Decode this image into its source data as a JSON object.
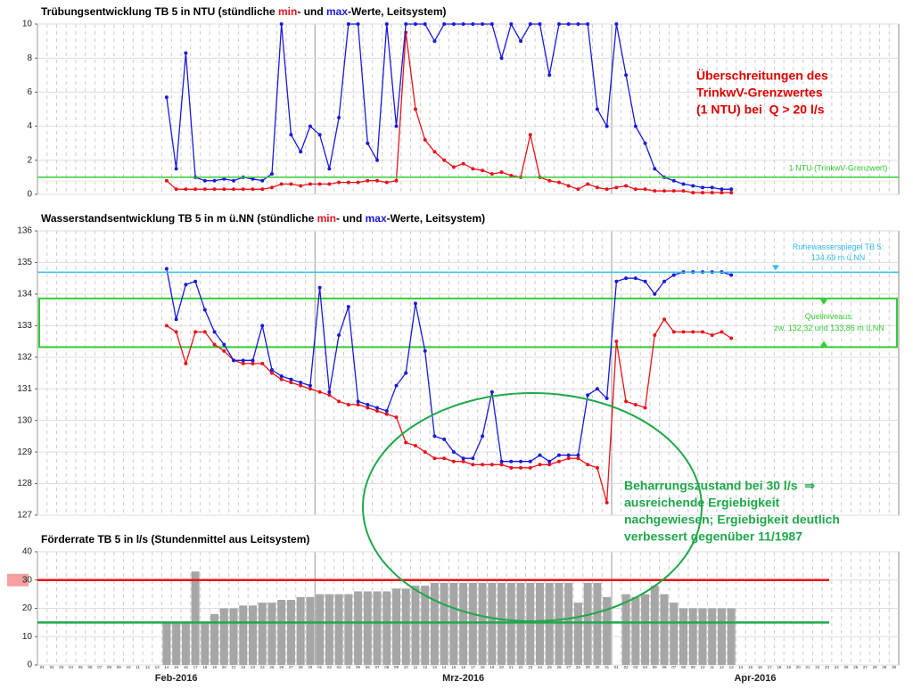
{
  "chart_data": [
    {
      "type": "line",
      "title": [
        "Trübungsentwicklung TB 5 in NTU (stündliche ",
        "- und ",
        "-Werte, Leitsystem)"
      ],
      "ylim": [
        0,
        10
      ],
      "yticks": [
        0,
        2,
        4,
        6,
        8,
        10
      ],
      "series": [
        {
          "name": "min",
          "color": "#e8131b",
          "values": [
            null,
            null,
            null,
            null,
            null,
            null,
            null,
            null,
            null,
            null,
            null,
            null,
            null,
            0.8,
            0.3,
            0.3,
            0.3,
            0.3,
            0.3,
            0.3,
            0.3,
            0.3,
            0.3,
            0.3,
            0.4,
            0.6,
            0.6,
            0.5,
            0.6,
            0.6,
            0.6,
            0.7,
            0.7,
            0.7,
            0.8,
            0.8,
            0.7,
            0.8,
            9.5,
            5.0,
            3.2,
            2.5,
            2.0,
            1.6,
            1.8,
            1.5,
            1.4,
            1.2,
            1.3,
            1.1,
            1.0,
            3.5,
            1.0,
            0.8,
            0.7,
            0.5,
            0.3,
            0.6,
            0.4,
            0.3,
            0.4,
            0.5,
            0.3,
            0.3,
            0.2,
            0.2,
            0.2,
            0.2,
            0.1,
            0.1,
            0.1,
            0.1,
            0.1,
            null,
            null,
            null,
            null,
            null,
            null,
            null,
            null,
            null,
            null,
            null,
            null,
            null,
            null,
            null,
            null,
            null
          ]
        },
        {
          "name": "max",
          "color": "#1a1adb",
          "values": [
            null,
            null,
            null,
            null,
            null,
            null,
            null,
            null,
            null,
            null,
            null,
            null,
            null,
            5.7,
            1.5,
            8.3,
            1.0,
            0.8,
            0.8,
            0.9,
            0.8,
            1.0,
            0.9,
            0.8,
            1.2,
            10,
            3.5,
            2.5,
            4.0,
            3.5,
            1.5,
            4.5,
            10,
            10,
            3.0,
            2.0,
            10,
            4.0,
            10,
            10,
            10,
            9,
            10,
            10,
            10,
            10,
            10,
            10,
            8,
            10,
            9,
            10,
            10,
            7,
            10,
            10,
            10,
            10,
            5,
            4,
            10,
            7,
            4,
            3,
            1.5,
            1.0,
            0.8,
            0.6,
            0.5,
            0.4,
            0.4,
            0.3,
            0.3,
            null,
            null,
            null,
            null,
            null,
            null,
            null,
            null,
            null,
            null,
            null,
            null,
            null,
            null,
            null,
            null,
            null
          ]
        }
      ],
      "reference_lines": [
        {
          "value": 1,
          "color": "#33cc33",
          "label": [
            "1 NTU (TrinkwV-Grenzwert)"
          ]
        }
      ],
      "annotation": {
        "color": "#e00000",
        "lines": [
          "Überschreitungen des",
          "TrinkwV-Grenzwertes",
          "(1 NTU) bei  Q > 20 l/s"
        ]
      }
    },
    {
      "type": "line",
      "title": [
        "Wasserstandsentwicklung TB 5 in m ü.NN (stündliche ",
        "- und ",
        "-Werte, Leitsystem)"
      ],
      "ylim": [
        127,
        136
      ],
      "yticks": [
        127,
        128,
        129,
        130,
        131,
        132,
        133,
        134,
        135,
        136
      ],
      "series": [
        {
          "name": "min",
          "color": "#e8131b",
          "values": [
            null,
            null,
            null,
            null,
            null,
            null,
            null,
            null,
            null,
            null,
            null,
            null,
            null,
            133.0,
            132.8,
            131.8,
            132.8,
            132.8,
            132.4,
            132.2,
            131.9,
            131.8,
            131.8,
            131.8,
            131.5,
            131.3,
            131.2,
            131.1,
            131.0,
            130.9,
            130.8,
            130.6,
            130.5,
            130.5,
            130.4,
            130.3,
            130.2,
            130.1,
            129.3,
            129.2,
            129.0,
            128.8,
            128.8,
            128.7,
            128.7,
            128.6,
            128.6,
            128.6,
            128.6,
            128.5,
            128.5,
            128.5,
            128.6,
            128.6,
            128.7,
            128.8,
            128.8,
            128.6,
            128.5,
            127.4,
            132.5,
            130.6,
            130.5,
            130.4,
            132.7,
            133.2,
            132.8,
            132.8,
            132.8,
            132.8,
            132.7,
            132.8,
            132.6,
            null,
            null,
            null,
            null,
            null,
            null,
            null,
            null,
            null,
            null,
            null,
            null,
            null,
            null,
            null,
            null,
            null
          ]
        },
        {
          "name": "max",
          "color": "#1a1adb",
          "values": [
            null,
            null,
            null,
            null,
            null,
            null,
            null,
            null,
            null,
            null,
            null,
            null,
            null,
            134.8,
            133.2,
            134.3,
            134.4,
            133.5,
            132.8,
            132.4,
            131.9,
            131.9,
            131.9,
            133.0,
            131.6,
            131.4,
            131.3,
            131.2,
            131.1,
            134.2,
            130.9,
            132.7,
            133.6,
            130.6,
            130.5,
            130.4,
            130.3,
            131.1,
            131.5,
            133.7,
            132.2,
            129.5,
            129.4,
            129.0,
            128.8,
            128.8,
            129.5,
            130.9,
            128.7,
            128.7,
            128.7,
            128.7,
            128.9,
            128.7,
            128.9,
            128.9,
            128.9,
            130.8,
            131.0,
            130.7,
            134.4,
            134.5,
            134.5,
            134.4,
            134.0,
            134.4,
            134.6,
            134.7,
            134.7,
            134.7,
            134.7,
            134.7,
            134.6,
            null,
            null,
            null,
            null,
            null,
            null,
            null,
            null,
            null,
            null,
            null,
            null,
            null,
            null,
            null,
            null,
            null
          ]
        }
      ],
      "reference_lines": [
        {
          "value": 134.69,
          "color": "#33bbee",
          "label": [
            "Ruhewasserspiegel TB 5:",
            "134,69 m ü.NN"
          ]
        }
      ],
      "reference_band": {
        "range": [
          132.32,
          133.86
        ],
        "color": "#33cc33",
        "label": [
          "Quellniveaus:",
          "zw. 132,32 und 133,86 m ü.NN"
        ]
      }
    },
    {
      "type": "bar",
      "title": [
        "Förderrate TB 5 in l/s (Stundenmittel aus Leitsystem)"
      ],
      "ylim": [
        0,
        40
      ],
      "yticks": [
        0,
        10,
        20,
        30,
        40
      ],
      "color": "#a6a6a6",
      "categories": [
        "01",
        "02",
        "03",
        "04",
        "05",
        "06",
        "07",
        "08",
        "09",
        "10",
        "11",
        "12",
        "13",
        "14",
        "15",
        "16",
        "17",
        "18",
        "19",
        "20",
        "21",
        "22",
        "23",
        "24",
        "25",
        "26",
        "27",
        "28",
        "29",
        "01",
        "02",
        "03",
        "04",
        "05",
        "06",
        "07",
        "08",
        "09",
        "10",
        "11",
        "12",
        "13",
        "14",
        "15",
        "16",
        "17",
        "18",
        "19",
        "20",
        "21",
        "22",
        "23",
        "24",
        "25",
        "26",
        "27",
        "28",
        "29",
        "30",
        "31",
        "01",
        "02",
        "03",
        "04",
        "05",
        "06",
        "07",
        "08",
        "09",
        "10",
        "11",
        "12",
        "13",
        "14",
        "15",
        "16",
        "17",
        "18",
        "19",
        "20",
        "21",
        "22",
        "23",
        "24",
        "25",
        "26",
        "27",
        "28",
        "29",
        "30"
      ],
      "months": [
        "Feb-2016",
        "Mrz-2016",
        "Apr-2016"
      ],
      "values": [
        null,
        null,
        null,
        null,
        null,
        null,
        null,
        null,
        null,
        null,
        null,
        null,
        null,
        15,
        15,
        15,
        33,
        15,
        18,
        20,
        20,
        21,
        21,
        22,
        22,
        23,
        23,
        24,
        24,
        25,
        25,
        25,
        25,
        26,
        26,
        26,
        26,
        27,
        27,
        28,
        28,
        29,
        29,
        29,
        29,
        29,
        29,
        29,
        29,
        29,
        29,
        29,
        29,
        29,
        29,
        29,
        22,
        29,
        29,
        24,
        0,
        25,
        24,
        25,
        28,
        25,
        22,
        20,
        20,
        20,
        20,
        20,
        20,
        null,
        null,
        null,
        null,
        null,
        null,
        null,
        null,
        null,
        null,
        null,
        null,
        null,
        null,
        null,
        null,
        null
      ],
      "reference_lines": [
        {
          "value": 30,
          "color": "#e8131b",
          "highlight": true
        },
        {
          "value": 15,
          "color": "#1fa84a"
        }
      ],
      "annotation": {
        "color": "#1fa84a",
        "lines": [
          "Beharrungszustand bei 30 l/s  ⇒",
          "ausreichende Ergiebigkeit",
          "nachgewiesen; Ergiebigkeit deutlich",
          "verbessert gegenüber 11/1987"
        ]
      }
    }
  ]
}
